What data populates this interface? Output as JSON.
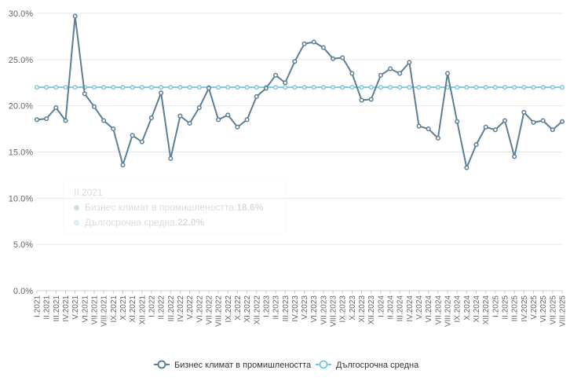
{
  "colors": {
    "series1": "#5b7f95",
    "series2": "#7fc7dc",
    "grid": "#e6e6e6",
    "axis": "#cccccc"
  },
  "tooltip": {
    "title": "II.2021",
    "rows": [
      {
        "label": "Бизнес климат в промишлеността: ",
        "value": "18.6%"
      },
      {
        "label": "Дългосрочна средна: ",
        "value": "22.0%"
      }
    ]
  },
  "chart_data": {
    "type": "line",
    "title": "",
    "xlabel": "",
    "ylabel": "",
    "ylim": [
      0,
      30
    ],
    "yticks": [
      0,
      5,
      10,
      15,
      20,
      25,
      30
    ],
    "ytick_labels": [
      "0.0%",
      "5.0%",
      "10.0%",
      "15.0%",
      "20.0%",
      "25.0%",
      "30.0%"
    ],
    "grid": true,
    "legend_position": "bottom-center",
    "categories": [
      "I.2021",
      "II.2021",
      "III.2021",
      "IV.2021",
      "V.2021",
      "VI.2021",
      "VII.2021",
      "VIII.2021",
      "IX.2021",
      "X.2021",
      "XI.2021",
      "XII.2021",
      "I.2022",
      "II.2022",
      "III.2022",
      "IV.2022",
      "V.2022",
      "VI.2022",
      "VII.2022",
      "VIII.2022",
      "IX.2022",
      "X.2022",
      "XI.2022",
      "XII.2022",
      "I.2023",
      "II.2023",
      "III.2023",
      "IV.2023",
      "V.2023",
      "VI.2023",
      "VII.2023",
      "VIII.2023",
      "IX.2023",
      "X.2023",
      "XI.2023",
      "XII.2023",
      "I.2024",
      "II.2024",
      "III.2024",
      "IV.2024",
      "V.2024",
      "VI.2024",
      "VII.2024",
      "VIII.2024",
      "IX.2024",
      "X.2024",
      "XI.2024",
      "XII.2024",
      "I.2025",
      "II.2025",
      "III.2025",
      "IV.2025",
      "V.2025",
      "VI.2025",
      "VII.2025",
      "VIII.2025"
    ],
    "series": [
      {
        "name": "Бизнес климат в промишлеността",
        "values": [
          18.5,
          18.6,
          19.8,
          18.4,
          29.7,
          21.3,
          19.9,
          18.4,
          17.5,
          13.6,
          16.8,
          16.1,
          18.7,
          21.4,
          14.3,
          18.9,
          18.1,
          19.8,
          21.9,
          18.5,
          19.0,
          17.7,
          18.5,
          21.0,
          21.9,
          23.3,
          22.5,
          24.8,
          26.7,
          26.9,
          26.3,
          25.1,
          25.2,
          23.5,
          20.6,
          20.7,
          23.3,
          24.0,
          23.5,
          24.7,
          17.8,
          17.5,
          16.5,
          23.5,
          18.3,
          13.3,
          15.8,
          17.7,
          17.4,
          18.4,
          14.5,
          19.3,
          18.2,
          18.4,
          17.4,
          18.3
        ]
      },
      {
        "name": "Дългосрочна средна",
        "values": [
          22,
          22,
          22,
          22,
          22,
          22,
          22,
          22,
          22,
          22,
          22,
          22,
          22,
          22,
          22,
          22,
          22,
          22,
          22,
          22,
          22,
          22,
          22,
          22,
          22,
          22,
          22,
          22,
          22,
          22,
          22,
          22,
          22,
          22,
          22,
          22,
          22,
          22,
          22,
          22,
          22,
          22,
          22,
          22,
          22,
          22,
          22,
          22,
          22,
          22,
          22,
          22,
          22,
          22,
          22,
          22
        ]
      }
    ]
  }
}
